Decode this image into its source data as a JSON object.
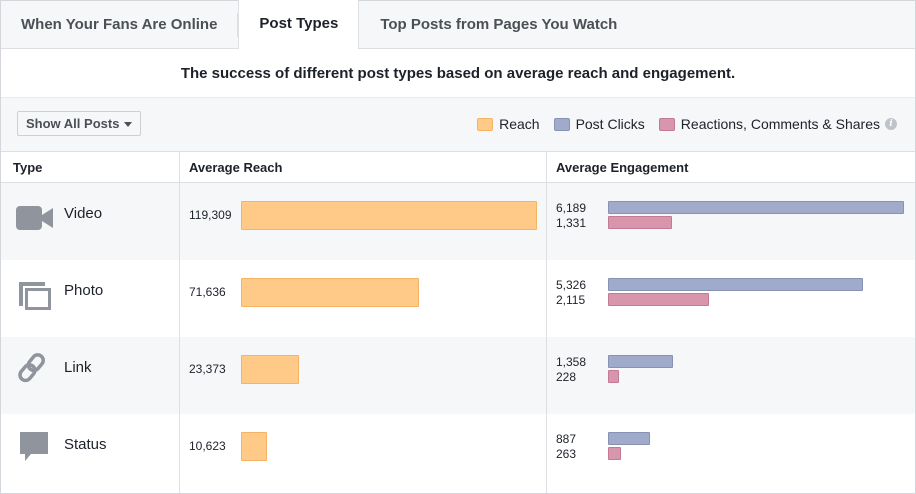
{
  "tabs": [
    {
      "label": "When Your Fans Are Online"
    },
    {
      "label": "Post Types"
    },
    {
      "label": "Top Posts from Pages You Watch"
    }
  ],
  "active_tab": 1,
  "subtitle": "The success of different post types based on average reach and engagement.",
  "filter": {
    "label": "Show All Posts"
  },
  "legend": {
    "reach": {
      "label": "Reach",
      "color": "#ffc987"
    },
    "clicks": {
      "label": "Post Clicks",
      "color": "#a0abcc"
    },
    "reactions": {
      "label": "Reactions, Comments & Shares",
      "color": "#d896ad"
    }
  },
  "columns": {
    "type": "Type",
    "reach": "Average Reach",
    "engagement": "Average Engagement"
  },
  "rows": [
    {
      "icon": "video-icon",
      "label": "Video",
      "reach": "119,309",
      "reach_value": 119309,
      "clicks": "6,189",
      "clicks_value": 6189,
      "reactions": "1,331",
      "reactions_value": 1331
    },
    {
      "icon": "photo-icon",
      "label": "Photo",
      "reach": "71,636",
      "reach_value": 71636,
      "clicks": "5,326",
      "clicks_value": 5326,
      "reactions": "2,115",
      "reactions_value": 2115
    },
    {
      "icon": "link-icon",
      "label": "Link",
      "reach": "23,373",
      "reach_value": 23373,
      "clicks": "1,358",
      "clicks_value": 1358,
      "reactions": "228",
      "reactions_value": 228
    },
    {
      "icon": "status-icon",
      "label": "Status",
      "reach": "10,623",
      "reach_value": 10623,
      "clicks": "887",
      "clicks_value": 887,
      "reactions": "263",
      "reactions_value": 263
    }
  ]
}
